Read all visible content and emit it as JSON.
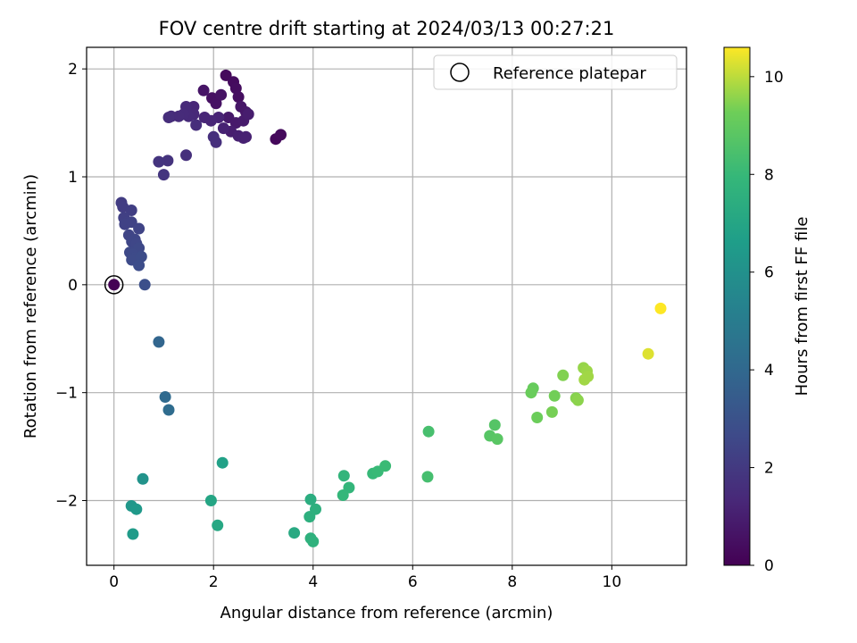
{
  "chart_data": {
    "type": "scatter",
    "title": "FOV centre drift starting at 2024/03/13 00:27:21",
    "xlabel": "Angular distance from reference (arcmin)",
    "ylabel": "Rotation from reference (arcmin)",
    "xlim": [
      -0.55,
      11.5
    ],
    "ylim": [
      -2.6,
      2.2
    ],
    "xticks": [
      0,
      2,
      4,
      6,
      8,
      10
    ],
    "yticks": [
      -2,
      -1,
      0,
      1,
      2
    ],
    "xtick_labels": [
      "0",
      "2",
      "4",
      "6",
      "8",
      "10"
    ],
    "ytick_labels": [
      "−2",
      "−1",
      "0",
      "1",
      "2"
    ],
    "grid": true,
    "legend": {
      "position": "top-right",
      "entries": [
        "Reference platepar"
      ]
    },
    "colorbar": {
      "label": "Hours from first FF file",
      "colormap": "viridis",
      "range": [
        0,
        10.6
      ],
      "ticks": [
        0,
        2,
        4,
        6,
        8,
        10
      ],
      "tick_labels": [
        "0",
        "2",
        "4",
        "6",
        "8",
        "10"
      ]
    },
    "reference_point": {
      "name": "Reference platepar",
      "x": 0,
      "y": 0
    },
    "series": [
      {
        "points": [
          [
            0.0,
            0.0,
            0.0
          ],
          [
            2.25,
            1.94,
            0.3
          ],
          [
            2.4,
            1.88,
            0.35
          ],
          [
            2.45,
            1.82,
            0.4
          ],
          [
            2.5,
            1.74,
            0.45
          ],
          [
            1.97,
            1.73,
            0.5
          ],
          [
            2.05,
            1.68,
            0.55
          ],
          [
            2.15,
            1.76,
            0.6
          ],
          [
            1.8,
            1.8,
            0.65
          ],
          [
            3.25,
            1.35,
            0.25
          ],
          [
            3.35,
            1.39,
            0.3
          ],
          [
            2.55,
            1.65,
            0.7
          ],
          [
            2.65,
            1.6,
            0.75
          ],
          [
            2.3,
            1.55,
            0.8
          ],
          [
            2.45,
            1.5,
            0.85
          ],
          [
            2.6,
            1.52,
            0.9
          ],
          [
            2.7,
            1.58,
            0.95
          ],
          [
            2.35,
            1.42,
            1.0
          ],
          [
            2.5,
            1.38,
            1.05
          ],
          [
            2.6,
            1.36,
            1.1
          ],
          [
            2.65,
            1.37,
            1.1
          ],
          [
            2.2,
            1.45,
            1.15
          ],
          [
            2.1,
            1.55,
            1.2
          ],
          [
            1.95,
            1.52,
            1.25
          ],
          [
            1.82,
            1.55,
            1.25
          ],
          [
            1.6,
            1.65,
            1.3
          ],
          [
            1.6,
            1.58,
            1.35
          ],
          [
            1.45,
            1.65,
            1.4
          ],
          [
            1.5,
            1.56,
            1.4
          ],
          [
            1.4,
            1.58,
            1.45
          ],
          [
            1.3,
            1.56,
            1.5
          ],
          [
            1.15,
            1.56,
            1.5
          ],
          [
            1.1,
            1.55,
            1.55
          ],
          [
            1.65,
            1.48,
            1.55
          ],
          [
            2.0,
            1.37,
            1.6
          ],
          [
            2.05,
            1.32,
            1.6
          ],
          [
            1.45,
            1.2,
            1.65
          ],
          [
            1.08,
            1.15,
            1.75
          ],
          [
            0.9,
            1.14,
            1.8
          ],
          [
            1.0,
            1.02,
            1.85
          ],
          [
            0.15,
            0.76,
            2.1
          ],
          [
            0.18,
            0.72,
            2.15
          ],
          [
            0.35,
            0.69,
            2.2
          ],
          [
            0.2,
            0.62,
            2.25
          ],
          [
            0.28,
            0.58,
            2.3
          ],
          [
            0.22,
            0.56,
            2.35
          ],
          [
            0.35,
            0.58,
            2.35
          ],
          [
            0.5,
            0.52,
            2.4
          ],
          [
            0.3,
            0.46,
            2.45
          ],
          [
            0.42,
            0.42,
            2.5
          ],
          [
            0.36,
            0.4,
            2.5
          ],
          [
            0.45,
            0.38,
            2.55
          ],
          [
            0.5,
            0.34,
            2.6
          ],
          [
            0.32,
            0.3,
            2.6
          ],
          [
            0.38,
            0.28,
            2.65
          ],
          [
            0.43,
            0.25,
            2.7
          ],
          [
            0.36,
            0.23,
            2.7
          ],
          [
            0.55,
            0.26,
            2.75
          ],
          [
            0.5,
            0.18,
            2.8
          ],
          [
            0.62,
            0.0,
            2.85
          ],
          [
            0.9,
            -0.53,
            3.9
          ],
          [
            1.03,
            -1.04,
            4.1
          ],
          [
            1.1,
            -1.16,
            4.2
          ],
          [
            0.58,
            -1.8,
            6.1
          ],
          [
            0.35,
            -2.05,
            6.3
          ],
          [
            0.45,
            -2.08,
            6.4
          ],
          [
            0.38,
            -2.31,
            6.5
          ],
          [
            2.18,
            -1.65,
            6.8
          ],
          [
            1.95,
            -2.0,
            7.0
          ],
          [
            2.08,
            -2.23,
            7.1
          ],
          [
            3.62,
            -2.3,
            7.2
          ],
          [
            3.95,
            -1.99,
            7.4
          ],
          [
            3.93,
            -2.15,
            7.5
          ],
          [
            4.05,
            -2.08,
            7.55
          ],
          [
            3.95,
            -2.35,
            7.6
          ],
          [
            4.0,
            -2.38,
            7.65
          ],
          [
            4.62,
            -1.77,
            7.8
          ],
          [
            4.72,
            -1.88,
            7.85
          ],
          [
            4.6,
            -1.95,
            7.9
          ],
          [
            5.2,
            -1.75,
            8.0
          ],
          [
            5.3,
            -1.73,
            8.05
          ],
          [
            5.45,
            -1.68,
            8.1
          ],
          [
            6.32,
            -1.36,
            8.4
          ],
          [
            6.3,
            -1.78,
            8.35
          ],
          [
            7.65,
            -1.3,
            8.7
          ],
          [
            7.55,
            -1.4,
            8.75
          ],
          [
            7.7,
            -1.43,
            8.8
          ],
          [
            8.42,
            -0.96,
            9.1
          ],
          [
            8.38,
            -1.0,
            9.15
          ],
          [
            8.5,
            -1.23,
            9.2
          ],
          [
            8.85,
            -1.03,
            9.3
          ],
          [
            8.8,
            -1.18,
            9.35
          ],
          [
            9.02,
            -0.84,
            9.45
          ],
          [
            9.28,
            -1.05,
            9.5
          ],
          [
            9.32,
            -1.07,
            9.55
          ],
          [
            9.43,
            -0.77,
            9.65
          ],
          [
            9.5,
            -0.8,
            9.7
          ],
          [
            9.52,
            -0.85,
            9.75
          ],
          [
            9.45,
            -0.88,
            9.75
          ],
          [
            10.73,
            -0.64,
            10.3
          ],
          [
            10.98,
            -0.22,
            10.6
          ]
        ]
      }
    ]
  }
}
